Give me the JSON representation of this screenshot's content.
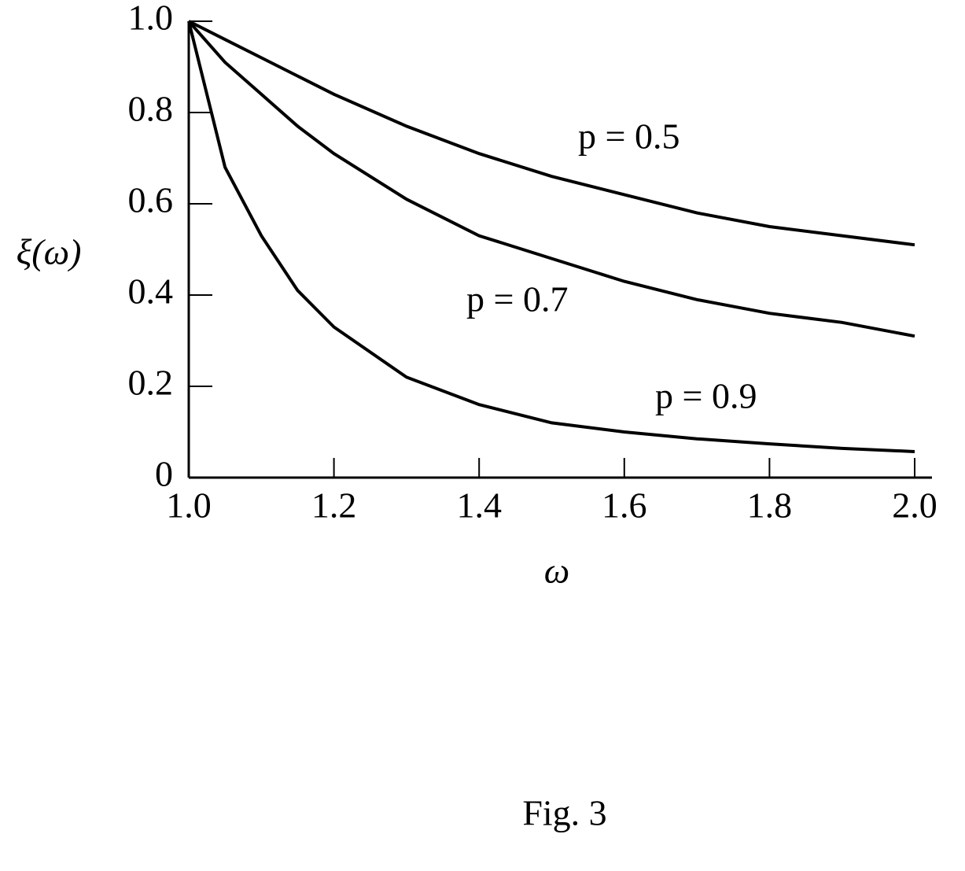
{
  "chart_data": {
    "type": "line",
    "x_label": "ω",
    "y_label": "ξ(ω)",
    "caption": "Fig. 3",
    "x": [
      1.0,
      1.05,
      1.1,
      1.15,
      1.2,
      1.3,
      1.4,
      1.5,
      1.6,
      1.7,
      1.8,
      1.9,
      2.0
    ],
    "series": [
      {
        "name": "p = 0.5",
        "color": "#000000",
        "values": [
          1.0,
          0.96,
          0.92,
          0.88,
          0.84,
          0.77,
          0.71,
          0.66,
          0.62,
          0.58,
          0.55,
          0.53,
          0.51
        ]
      },
      {
        "name": "p = 0.7",
        "color": "#000000",
        "values": [
          1.0,
          0.91,
          0.84,
          0.77,
          0.71,
          0.61,
          0.53,
          0.48,
          0.43,
          0.39,
          0.36,
          0.34,
          0.31
        ]
      },
      {
        "name": "p = 0.9",
        "color": "#000000",
        "values": [
          1.0,
          0.68,
          0.53,
          0.41,
          0.33,
          0.22,
          0.16,
          0.12,
          0.1,
          0.085,
          0.074,
          0.064,
          0.057
        ]
      }
    ],
    "xlim": [
      1.0,
      2.0
    ],
    "xticks": [
      {
        "value": 1.0,
        "label": "1.0"
      },
      1.2,
      1.4,
      1.6,
      1.8,
      {
        "value": 2.0,
        "label": "2.0"
      }
    ],
    "ylim": [
      0,
      1.0
    ],
    "yticks": [
      0,
      0.2,
      0.4,
      0.6,
      0.8,
      {
        "value": 1.0,
        "label": "1.0"
      }
    ],
    "grid": false
  }
}
